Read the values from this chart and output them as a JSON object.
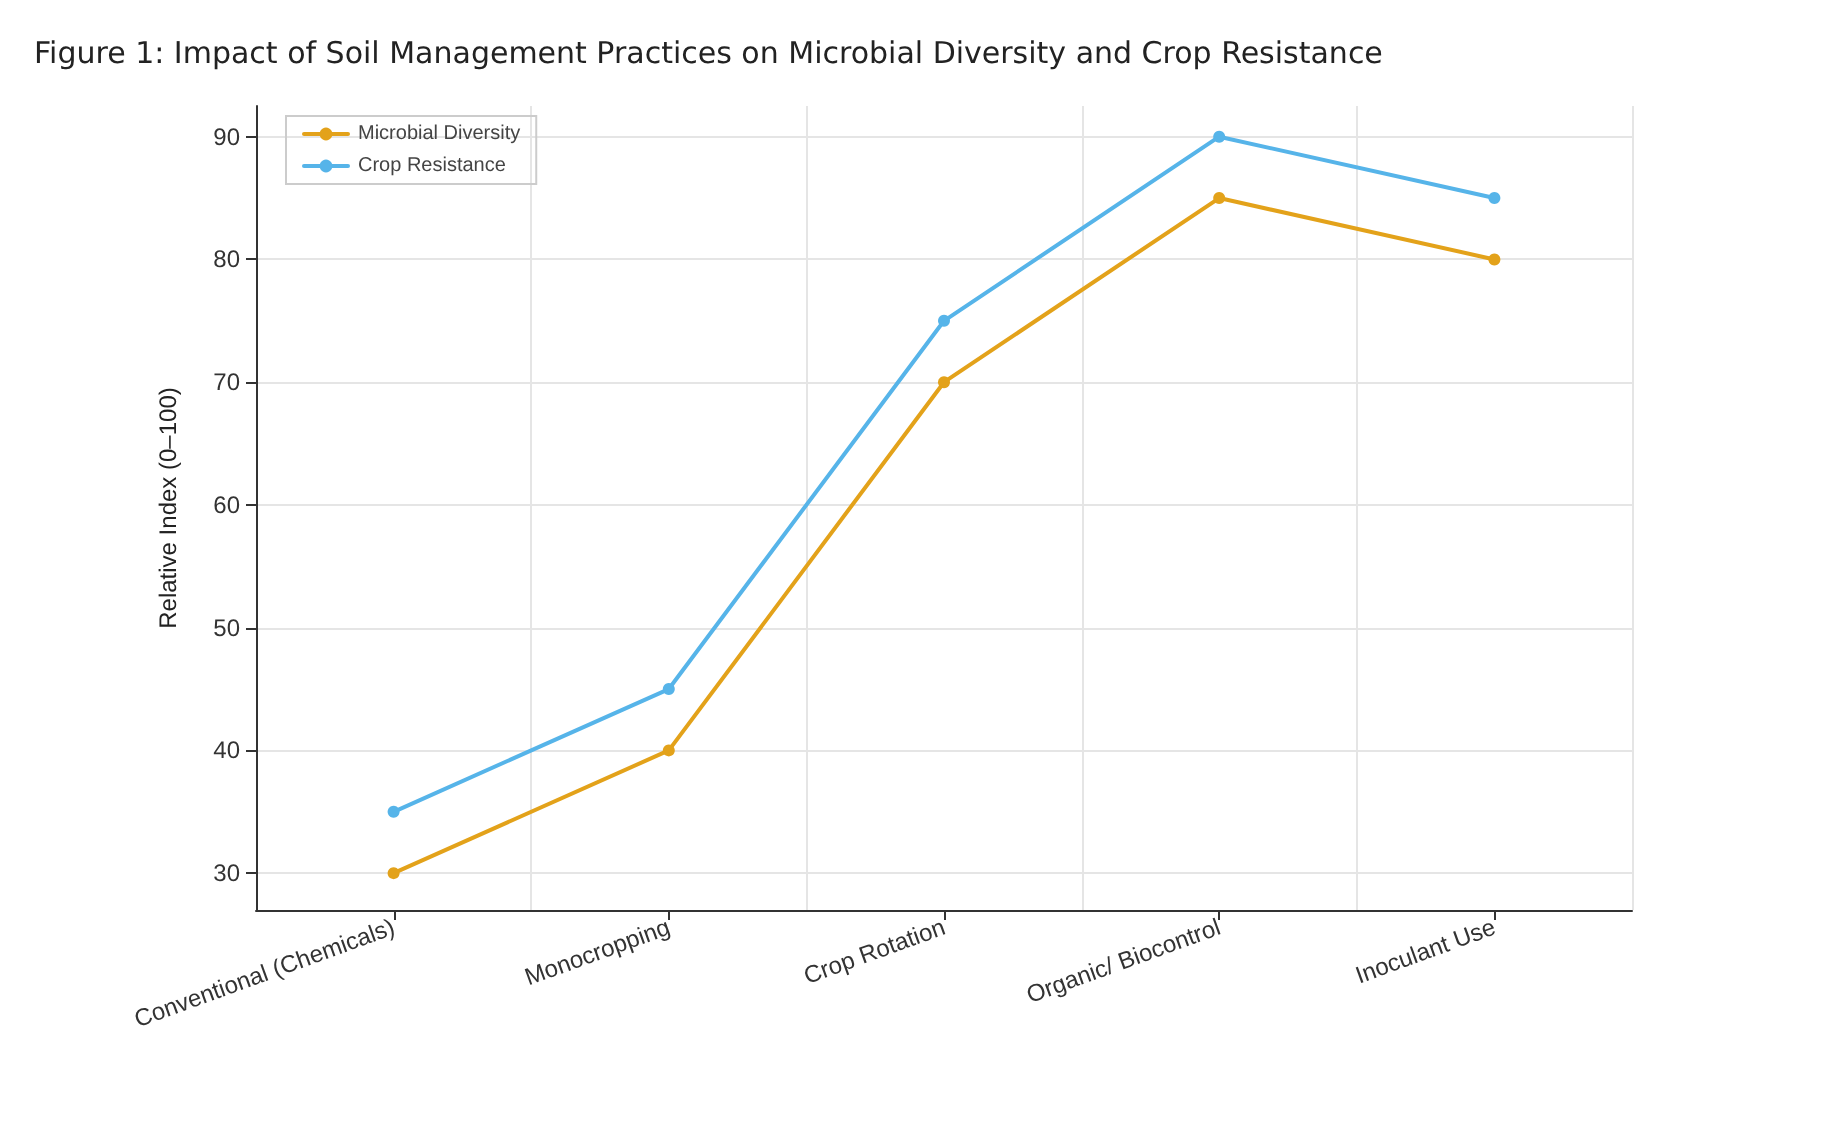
{
  "chart_data": {
    "type": "line",
    "title": "Figure 1: Impact of Soil Management Practices on Microbial Diversity and Crop Resistance",
    "ylabel": "Relative Index (0–100)",
    "categories": [
      "Conventional (Chemicals)",
      "Monocropping",
      "Crop Rotation",
      "Organic/ Biocontrol",
      "Inoculant Use"
    ],
    "series": [
      {
        "name": "Microbial Diversity",
        "color": "#e3a21a",
        "values": [
          30,
          40,
          70,
          85,
          80
        ]
      },
      {
        "name": "Crop Resistance",
        "color": "#56b4e9",
        "values": [
          35,
          45,
          75,
          90,
          85
        ]
      }
    ],
    "ylim": [
      27,
      92.5
    ],
    "yticks": [
      30,
      40,
      50,
      60,
      70,
      80,
      90
    ],
    "grid": true,
    "legend": "top left",
    "marker": "circle",
    "line_style": "solid"
  }
}
